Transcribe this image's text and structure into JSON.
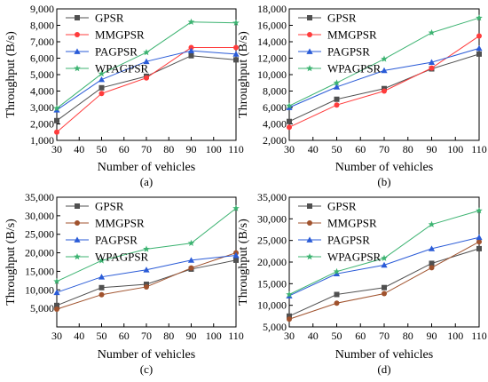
{
  "colors": {
    "GPSR": "#505050",
    "MMGPSR": "#ff3c3c",
    "PAGPSR": "#2a5bd7",
    "WPAGPSR": "#3cb371",
    "MMGPSR_brown": "#a0522d"
  },
  "chart_data": [
    {
      "type": "line",
      "caption": "(a)",
      "xlabel": "Number of vehicles",
      "ylabel": "Throughput (B/s)",
      "x": [
        30,
        50,
        70,
        90,
        110
      ],
      "xlim": [
        30,
        110
      ],
      "xticks": [
        30,
        40,
        50,
        60,
        70,
        80,
        90,
        100,
        110
      ],
      "ylim": [
        1000,
        9000
      ],
      "yticks": [
        1000,
        2000,
        3000,
        4000,
        5000,
        6000,
        7000,
        8000,
        9000
      ],
      "ytick_labels": [
        "1,000",
        "2,000",
        "3,000",
        "4,000",
        "5,000",
        "6,000",
        "7,000",
        "8,000",
        "9,000"
      ],
      "legend_position": "top-left",
      "series": [
        {
          "name": "GPSR",
          "color": "#505050",
          "marker": "square",
          "values": [
            2200,
            4200,
            4900,
            6150,
            5900
          ]
        },
        {
          "name": "MMGPSR",
          "color": "#ff3c3c",
          "marker": "circle",
          "values": [
            1500,
            3850,
            4800,
            6650,
            6650
          ]
        },
        {
          "name": "PAGPSR",
          "color": "#2a5bd7",
          "marker": "triangle",
          "values": [
            2850,
            4700,
            5800,
            6450,
            6250
          ]
        },
        {
          "name": "WPAGPSR",
          "color": "#3cb371",
          "marker": "star",
          "values": [
            2950,
            5050,
            6350,
            8200,
            8150
          ]
        }
      ]
    },
    {
      "type": "line",
      "caption": "(b)",
      "xlabel": "Number of vehicles",
      "ylabel": "Throughput (B/s)",
      "x": [
        30,
        50,
        70,
        90,
        110
      ],
      "xlim": [
        30,
        110
      ],
      "xticks": [
        30,
        40,
        50,
        60,
        70,
        80,
        90,
        100,
        110
      ],
      "ylim": [
        2000,
        18000
      ],
      "yticks": [
        2000,
        4000,
        6000,
        8000,
        10000,
        12000,
        14000,
        16000,
        18000
      ],
      "ytick_labels": [
        "2,000",
        "4,000",
        "6,000",
        "8,000",
        "10,000",
        "12,000",
        "14,000",
        "16,000",
        "18,000"
      ],
      "legend_position": "top-left",
      "series": [
        {
          "name": "GPSR",
          "color": "#505050",
          "marker": "square",
          "values": [
            4300,
            7000,
            8300,
            10700,
            12500
          ]
        },
        {
          "name": "MMGPSR",
          "color": "#ff3c3c",
          "marker": "circle",
          "values": [
            3600,
            6300,
            8000,
            10800,
            14700
          ]
        },
        {
          "name": "PAGPSR",
          "color": "#2a5bd7",
          "marker": "triangle",
          "values": [
            6000,
            8500,
            10500,
            11500,
            13200
          ]
        },
        {
          "name": "WPAGPSR",
          "color": "#3cb371",
          "marker": "star",
          "values": [
            6200,
            9000,
            11900,
            15100,
            16900
          ]
        }
      ]
    },
    {
      "type": "line",
      "caption": "(c)",
      "xlabel": "Number of vehicles",
      "ylabel": "Throughput (B/s)",
      "x": [
        30,
        50,
        70,
        90,
        110
      ],
      "xlim": [
        30,
        110
      ],
      "xticks": [
        30,
        40,
        50,
        60,
        70,
        80,
        90,
        100,
        110
      ],
      "ylim": [
        0,
        35000
      ],
      "yticks": [
        5000,
        10000,
        15000,
        20000,
        25000,
        30000,
        35000
      ],
      "ytick_labels": [
        "5,000",
        "10,000",
        "15,000",
        "20,000",
        "25,000",
        "30,000",
        "35,000"
      ],
      "legend_position": "top-left",
      "series": [
        {
          "name": "GPSR",
          "color": "#505050",
          "marker": "square",
          "values": [
            5800,
            10600,
            11500,
            15600,
            18000
          ]
        },
        {
          "name": "MMGPSR",
          "color": "#a0522d",
          "marker": "circle",
          "values": [
            4800,
            8700,
            10800,
            15900,
            20000
          ]
        },
        {
          "name": "PAGPSR",
          "color": "#2a5bd7",
          "marker": "triangle",
          "values": [
            9300,
            13500,
            15400,
            18000,
            19300
          ]
        },
        {
          "name": "WPAGPSR",
          "color": "#3cb371",
          "marker": "star",
          "values": [
            12300,
            17900,
            21000,
            22600,
            32000
          ]
        }
      ]
    },
    {
      "type": "line",
      "caption": "(d)",
      "xlabel": "Number of vehicles",
      "ylabel": "Throughput (B/s)",
      "x": [
        30,
        50,
        70,
        90,
        110
      ],
      "xlim": [
        30,
        110
      ],
      "xticks": [
        30,
        40,
        50,
        60,
        70,
        80,
        90,
        100,
        110
      ],
      "ylim": [
        5000,
        35000
      ],
      "yticks": [
        5000,
        10000,
        15000,
        20000,
        25000,
        30000,
        35000
      ],
      "ytick_labels": [
        "5,000",
        "10,000",
        "15,000",
        "20,000",
        "25,000",
        "30,000",
        "35,000"
      ],
      "legend_position": "top-left",
      "series": [
        {
          "name": "GPSR",
          "color": "#505050",
          "marker": "square",
          "values": [
            7500,
            12500,
            14100,
            19700,
            23100
          ]
        },
        {
          "name": "MMGPSR",
          "color": "#a0522d",
          "marker": "circle",
          "values": [
            6800,
            10500,
            12700,
            18700,
            24700
          ]
        },
        {
          "name": "PAGPSR",
          "color": "#2a5bd7",
          "marker": "triangle",
          "values": [
            12200,
            17300,
            19300,
            23100,
            25700
          ]
        },
        {
          "name": "WPAGPSR",
          "color": "#3cb371",
          "marker": "star",
          "values": [
            12500,
            17800,
            20900,
            28700,
            31900
          ]
        }
      ]
    }
  ]
}
